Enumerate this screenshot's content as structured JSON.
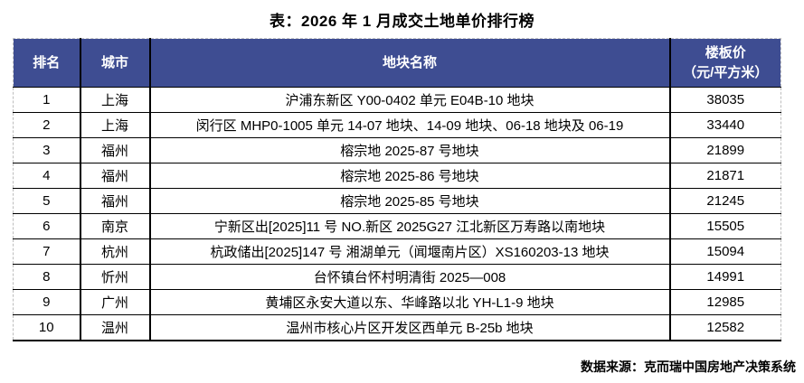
{
  "title": "表：2026 年 1 月成交土地单价排行榜",
  "header_display": {
    "rank": "排名",
    "city": "城市",
    "plot": "地块名称",
    "price_line1": "楼板价",
    "price_line2": "（元/平方米）"
  },
  "footer": {
    "source": "数据来源：克而瑞中国房地产决策系统"
  },
  "colors": {
    "header_bg": "#3E4D92",
    "header_text": "#FFFFFF",
    "border": "#000000",
    "body_text": "#000000"
  },
  "chart_data": {
    "type": "table",
    "title": "表：2026 年 1 月成交土地单价排行榜",
    "columns": [
      "排名",
      "城市",
      "地块名称",
      "楼板价（元/平方米）"
    ],
    "rows": [
      {
        "rank": "1",
        "city": "上海",
        "plot": "沪浦东新区 Y00-0402 单元 E04B-10 地块",
        "price": "38035"
      },
      {
        "rank": "2",
        "city": "上海",
        "plot": "闵行区 MHP0-1005 单元 14-07 地块、14-09 地块、06-18 地块及 06-19",
        "price": "33440"
      },
      {
        "rank": "3",
        "city": "福州",
        "plot": "榕宗地 2025-87 号地块",
        "price": "21899"
      },
      {
        "rank": "4",
        "city": "福州",
        "plot": "榕宗地 2025-86 号地块",
        "price": "21871"
      },
      {
        "rank": "5",
        "city": "福州",
        "plot": "榕宗地 2025-85 号地块",
        "price": "21245"
      },
      {
        "rank": "6",
        "city": "南京",
        "plot": "宁新区出[2025]11 号 NO.新区 2025G27 江北新区万寿路以南地块",
        "price": "15505"
      },
      {
        "rank": "7",
        "city": "杭州",
        "plot": "杭政储出[2025]147 号 湘湖单元（闻堰南片区）XS160203-13 地块",
        "price": "15094"
      },
      {
        "rank": "8",
        "city": "忻州",
        "plot": "台怀镇台怀村明清街 2025—008",
        "price": "14991"
      },
      {
        "rank": "9",
        "city": "广州",
        "plot": "黄埔区永安大道以东、华峰路以北 YH-L1-9 地块",
        "price": "12985"
      },
      {
        "rank": "10",
        "city": "温州",
        "plot": "温州市核心片区开发区西单元 B-25b 地块",
        "price": "12582"
      }
    ],
    "source": "数据来源：克而瑞中国房地产决策系统"
  }
}
